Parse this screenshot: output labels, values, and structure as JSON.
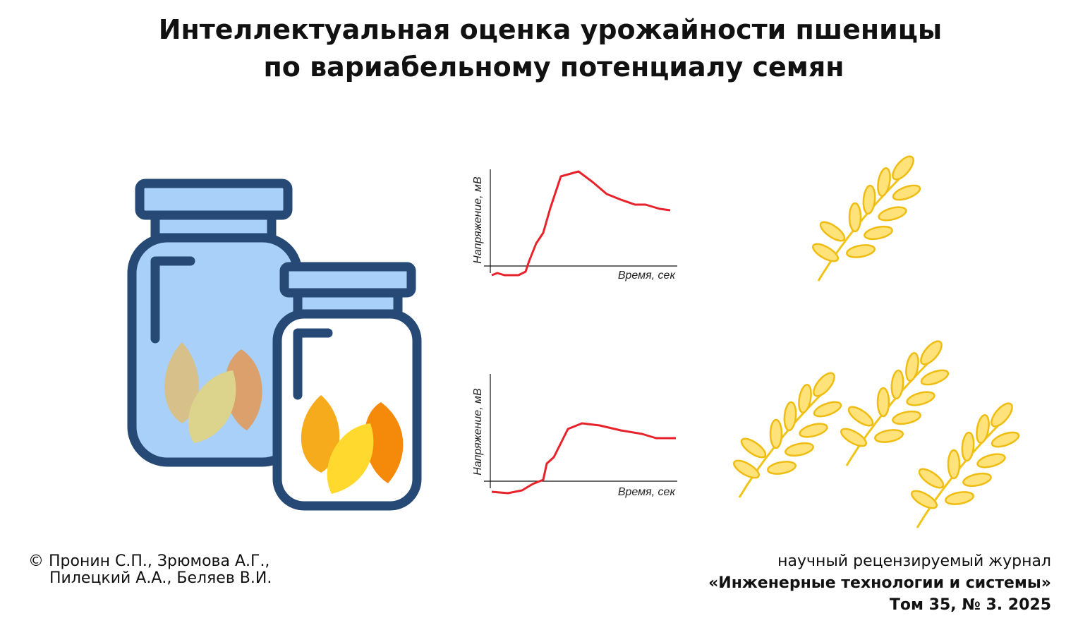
{
  "header": {
    "title_lines": [
      "Интеллектуальная оценка урожайности пшеницы",
      "по вариабельному потенциалу семян"
    ]
  },
  "charts": [
    {
      "y_label": "Напряжение, мВ",
      "x_label": "Время, сек"
    },
    {
      "y_label": "Напряжение, мВ",
      "x_label": "Время, сек"
    }
  ],
  "footer": {
    "authors": [
      "© Пронин С.П., Зрюмова А.Г.,",
      "Пилецкий А.А., Беляев В.И."
    ],
    "journal": [
      "научный рецензируемый журнал",
      "«Инженерные технологии и системы»",
      "Том 35, № 3. 2025"
    ]
  }
}
